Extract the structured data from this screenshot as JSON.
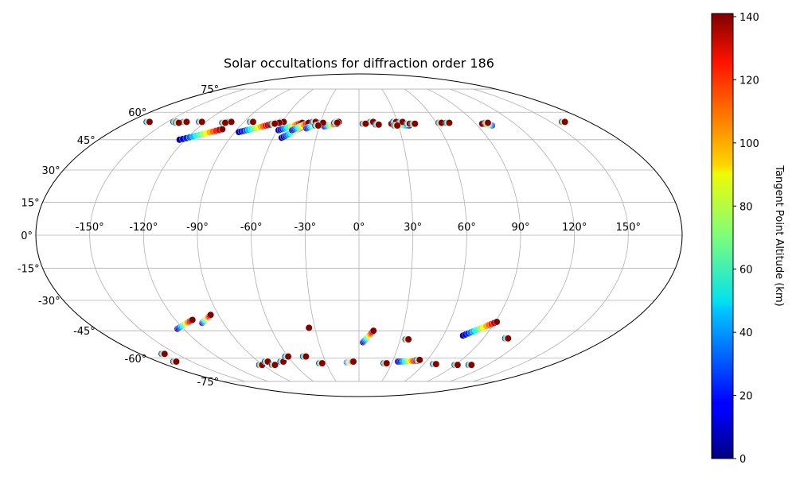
{
  "chart_data": {
    "type": "scatter",
    "projection": "mollweide",
    "title": "Solar occultations for diffraction order 186",
    "x_ticks": [
      "-150°",
      "-120°",
      "-90°",
      "-60°",
      "-30°",
      "0°",
      "30°",
      "60°",
      "90°",
      "120°",
      "150°"
    ],
    "y_ticks": [
      "-75°",
      "-60°",
      "-45°",
      "-30°",
      "-15°",
      "0°",
      "15°",
      "30°",
      "45°",
      "60°",
      "75°"
    ],
    "grid": true,
    "colorbar": {
      "label": "Tangent Point Altitude (km)",
      "colormap": "jet",
      "range": [
        0,
        141
      ],
      "ticks": [
        "0",
        "20",
        "40",
        "60",
        "80",
        "100",
        "120",
        "140"
      ]
    },
    "tracks": [
      {
        "lon": [
          -124,
          -101
        ],
        "lat": [
          45.0,
          50.5
        ]
      },
      {
        "lon": [
          -87,
          -68
        ],
        "lat": [
          49.0,
          53.0
        ]
      },
      {
        "lon": [
          -59,
          -44
        ],
        "lat": [
          50.0,
          54.0
        ]
      },
      {
        "lon": [
          -54,
          -41
        ],
        "lat": [
          46.0,
          52.5
        ]
      },
      {
        "lon": [
          -49,
          -39
        ],
        "lat": [
          50.0,
          54.0
        ]
      },
      {
        "lon": [
          -39,
          -30
        ],
        "lat": [
          51.0,
          54.0
        ]
      },
      {
        "lon": [
          -26,
          -17
        ],
        "lat": [
          52.0,
          53.5
        ]
      },
      {
        "lon": [
          38,
          25
        ],
        "lat": [
          52.5,
          53.5
        ]
      },
      {
        "lon": [
          101,
          95
        ],
        "lat": [
          52.5,
          53.5
        ]
      },
      {
        "lon": [
          -165,
          -165
        ],
        "lat": [
          54.5,
          54.5
        ]
      },
      {
        "lon": [
          -136,
          -136
        ],
        "lat": [
          54.5,
          54.5
        ]
      },
      {
        "lon": [
          -124,
          -124
        ],
        "lat": [
          54.5,
          54.5
        ]
      },
      {
        "lon": [
          -101,
          -101
        ],
        "lat": [
          54.5,
          54.5
        ]
      },
      {
        "lon": [
          -84,
          -84
        ],
        "lat": [
          54.5,
          54.5
        ]
      },
      {
        "lon": [
          -60,
          -60
        ],
        "lat": [
          54.5,
          54.5
        ]
      },
      {
        "lon": [
          -35,
          -35
        ],
        "lat": [
          54.5,
          54.5
        ]
      },
      {
        "lon": [
          -17,
          -17
        ],
        "lat": [
          54.5,
          54.5
        ]
      },
      {
        "lon": [
          10,
          10
        ],
        "lat": [
          54.5,
          54.5
        ]
      },
      {
        "lon": [
          28,
          28
        ],
        "lat": [
          54.5,
          54.5
        ]
      },
      {
        "lon": [
          33,
          33
        ],
        "lat": [
          54.5,
          54.5
        ]
      },
      {
        "lon": [
          160,
          160
        ],
        "lat": [
          54.5,
          54.5
        ]
      },
      {
        "lon": [
          -18,
          -18
        ],
        "lat": [
          54.0,
          54.0
        ]
      },
      {
        "lon": [
          -144,
          -144
        ],
        "lat": [
          54.5,
          54.5
        ]
      },
      {
        "lon": [
          -141,
          -141
        ],
        "lat": [
          54.0,
          54.0
        ]
      },
      {
        "lon": [
          -105,
          -105
        ],
        "lat": [
          54.0,
          54.0
        ]
      },
      {
        "lon": [
          -63,
          -63
        ],
        "lat": [
          54.0,
          54.0
        ]
      },
      {
        "lon": [
          -29,
          -29
        ],
        "lat": [
          54.0,
          54.0
        ]
      },
      {
        "lon": [
          38,
          38
        ],
        "lat": [
          53.5,
          53.5
        ]
      },
      {
        "lon": [
          -32,
          -32
        ],
        "lat": [
          52.5,
          52.5
        ]
      },
      {
        "lon": [
          14,
          14
        ],
        "lat": [
          53.0,
          53.0
        ]
      },
      {
        "lon": [
          28,
          28
        ],
        "lat": [
          52.5,
          52.5
        ]
      },
      {
        "lon": [
          4,
          4
        ],
        "lat": [
          53.5,
          53.5
        ]
      },
      {
        "lon": [
          42,
          42
        ],
        "lat": [
          53.5,
          53.5
        ]
      },
      {
        "lon": [
          -66,
          -66
        ],
        "lat": [
          53.5,
          53.5
        ]
      },
      {
        "lon": [
          63,
          63
        ],
        "lat": [
          54.0,
          54.0
        ]
      },
      {
        "lon": [
          69,
          69
        ],
        "lat": [
          54.0,
          54.0
        ]
      },
      {
        "lon": [
          99,
          99
        ],
        "lat": [
          54.0,
          54.0
        ]
      },
      {
        "lon": [
          -124,
          -109
        ],
        "lat": [
          -44.0,
          -39.5
        ]
      },
      {
        "lon": [
          -104,
          -95
        ],
        "lat": [
          -41.0,
          -37.0
        ]
      },
      {
        "lon": [
          -35,
          -34
        ],
        "lat": [
          -44.0,
          -43.5
        ]
      },
      {
        "lon": [
          3,
          10
        ],
        "lat": [
          -51.0,
          -45.0
        ]
      },
      {
        "lon": [
          35,
          35
        ],
        "lat": [
          -49.5,
          -49.5
        ]
      },
      {
        "lon": [
          74,
          91
        ],
        "lat": [
          -47.5,
          -40.5
        ]
      },
      {
        "lon": [
          107,
          107
        ],
        "lat": [
          -49.0,
          -49.0
        ]
      },
      {
        "lon": [
          -161,
          -161
        ],
        "lat": [
          -57.5,
          -57.5
        ]
      },
      {
        "lon": [
          -165,
          -165
        ],
        "lat": [
          -62.0,
          -62.0
        ]
      },
      {
        "lon": [
          -92,
          -92
        ],
        "lat": [
          -64.0,
          -64.0
        ]
      },
      {
        "lon": [
          -83,
          -83
        ],
        "lat": [
          -62.0,
          -62.0
        ]
      },
      {
        "lon": [
          -80,
          -80
        ],
        "lat": [
          -64.0,
          -64.0
        ]
      },
      {
        "lon": [
          -69,
          -69
        ],
        "lat": [
          -62.0,
          -62.0
        ]
      },
      {
        "lon": [
          -61,
          -61
        ],
        "lat": [
          -59.0,
          -59.0
        ]
      },
      {
        "lon": [
          -46,
          -46
        ],
        "lat": [
          -59.0,
          -59.0
        ]
      },
      {
        "lon": [
          -35,
          -35
        ],
        "lat": [
          -63.0,
          -63.0
        ]
      },
      {
        "lon": [
          -11,
          -5
        ],
        "lat": [
          -62.5,
          -62.0
        ]
      },
      {
        "lon": [
          24,
          24
        ],
        "lat": [
          -63.0,
          -63.0
        ]
      },
      {
        "lon": [
          35,
          52
        ],
        "lat": [
          -62.0,
          -61.5
        ]
      },
      {
        "lon": [
          52,
          52
        ],
        "lat": [
          -61.0,
          -61.0
        ]
      },
      {
        "lon": [
          70,
          70
        ],
        "lat": [
          -63.5,
          -63.5
        ]
      },
      {
        "lon": [
          91,
          91
        ],
        "lat": [
          -64.0,
          -64.0
        ]
      },
      {
        "lon": [
          104,
          104
        ],
        "lat": [
          -64.0,
          -64.0
        ]
      }
    ]
  }
}
